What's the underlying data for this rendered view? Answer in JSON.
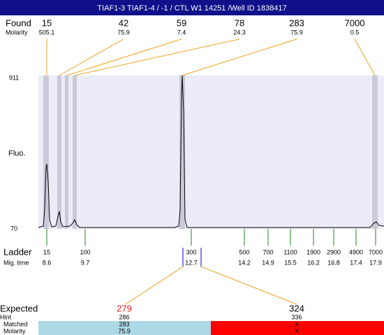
{
  "header": {
    "title": "TIAF1-3  TIAF1-4 / -1 / CTL W1 14251 /Well ID 1838417"
  },
  "found": {
    "label": "Found",
    "sublabel": "Molarity",
    "items": [
      {
        "size": "15",
        "molarity": "505.1"
      },
      {
        "size": "42",
        "molarity": "75.9"
      },
      {
        "size": "59",
        "molarity": "7.4"
      },
      {
        "size": "78",
        "molarity": "24.3"
      },
      {
        "size": "283",
        "molarity": "75.9"
      },
      {
        "size": "7000",
        "molarity": "0.5"
      }
    ]
  },
  "axis": {
    "label": "Fluo.",
    "max": "911",
    "min": "70"
  },
  "ladder": {
    "label": "Ladder",
    "sublabel": "Mig. time",
    "items": [
      {
        "size": "15",
        "time": "8.6"
      },
      {
        "size": "100",
        "time": "9.7"
      },
      {
        "size": "300",
        "time": "12.7"
      },
      {
        "size": "500",
        "time": "14.2"
      },
      {
        "size": "700",
        "time": "14.9"
      },
      {
        "size": "1100",
        "time": "15.5"
      },
      {
        "size": "1900",
        "time": "16.2"
      },
      {
        "size": "2900",
        "time": "16.8"
      },
      {
        "size": "4900",
        "time": "17.4"
      },
      {
        "size": "7000",
        "time": "17.9"
      }
    ]
  },
  "expected": {
    "label": "Expected",
    "hint_label": "Hint",
    "matched_label": "Matched",
    "molarity_label": "Molarity",
    "items": [
      {
        "expected": "279",
        "hint": "286",
        "matched": "283",
        "molarity": "75.9"
      },
      {
        "expected": "324",
        "hint": "336",
        "matched": "X",
        "molarity": "X"
      }
    ]
  }
}
